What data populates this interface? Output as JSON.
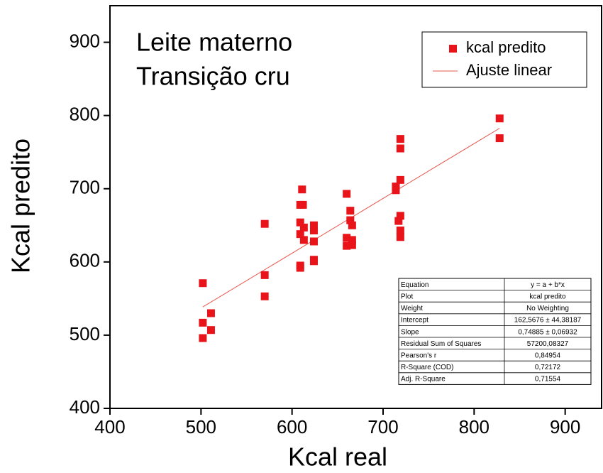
{
  "chart_data": {
    "type": "scatter",
    "annotations": [
      "Leite materno",
      "Transição cru"
    ],
    "xlabel": "Kcal real",
    "ylabel": "Kcal predito",
    "xlim": [
      400,
      940
    ],
    "ylim": [
      400,
      950
    ],
    "xticks": [
      400,
      500,
      600,
      700,
      800,
      900
    ],
    "yticks": [
      400,
      500,
      600,
      700,
      800,
      900
    ],
    "legend": "upper right",
    "series": [
      {
        "name": "kcal predito",
        "color": "#e8141a",
        "x": [
          502,
          502,
          502,
          511,
          511,
          570,
          570,
          570,
          609,
          609,
          611,
          609,
          612,
          609,
          609,
          613,
          613,
          624,
          624,
          624,
          624,
          624,
          660,
          664,
          664,
          666,
          660,
          660,
          666,
          666,
          714,
          714,
          717,
          719,
          719,
          719,
          719,
          719,
          719,
          828,
          828
        ],
        "y": [
          571,
          517,
          496,
          530,
          507,
          652,
          582,
          553,
          592,
          595,
          699,
          678,
          678,
          654,
          638,
          647,
          630,
          650,
          643,
          628,
          603,
          601,
          693,
          670,
          657,
          650,
          633,
          622,
          630,
          623,
          703,
          698,
          656,
          712,
          768,
          755,
          663,
          643,
          634,
          796,
          769
        ]
      }
    ],
    "fit": {
      "name": "Ajuste linear",
      "color": "#e8584f",
      "x": [
        502,
        828
      ],
      "y": [
        538.5,
        782.6
      ]
    },
    "stats_table": [
      [
        "Equation",
        "y = a + b*x"
      ],
      [
        "Plot",
        "kcal predito"
      ],
      [
        "Weight",
        "No Weighting"
      ],
      [
        "Intercept",
        "162,5676 ± 44,38187"
      ],
      [
        "Slope",
        "0,74885 ± 0,06932"
      ],
      [
        "Residual Sum of Squares",
        "57200,08327"
      ],
      [
        "Pearson's r",
        "0,84954"
      ],
      [
        "R-Square (COD)",
        "0,72172"
      ],
      [
        "Adj. R-Square",
        "0,71554"
      ]
    ]
  }
}
